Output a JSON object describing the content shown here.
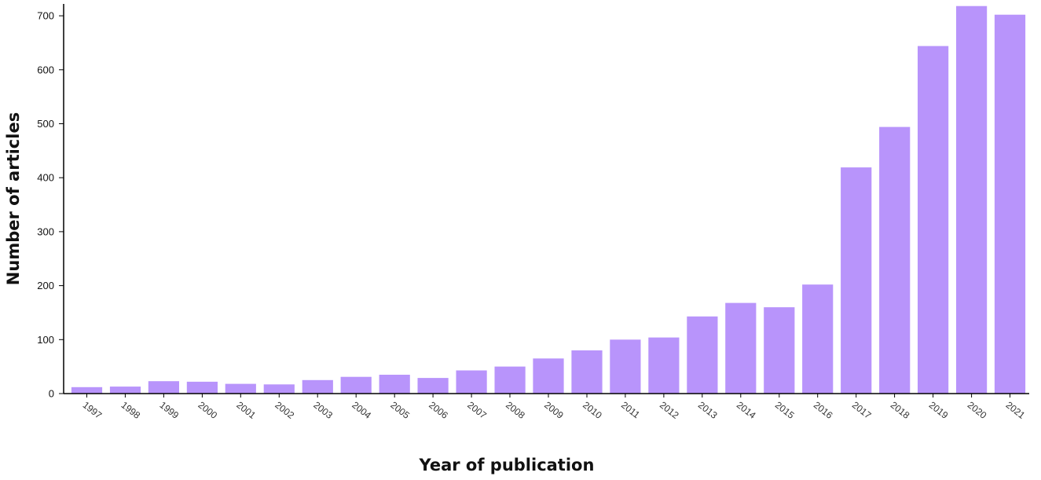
{
  "chart_data": {
    "type": "bar",
    "categories": [
      "1997",
      "1998",
      "1999",
      "2000",
      "2001",
      "2002",
      "2003",
      "2004",
      "2005",
      "2006",
      "2007",
      "2008",
      "2009",
      "2010",
      "2011",
      "2012",
      "2013",
      "2014",
      "2015",
      "2016",
      "2017",
      "2018",
      "2019",
      "2020",
      "2021"
    ],
    "values": [
      12,
      13,
      23,
      22,
      18,
      17,
      25,
      31,
      35,
      29,
      43,
      50,
      65,
      80,
      100,
      104,
      143,
      168,
      160,
      202,
      419,
      494,
      644,
      718,
      702
    ],
    "xlabel": "Year of publication",
    "ylabel": "Number of articles",
    "ylim": [
      0,
      720
    ],
    "yticks": [
      0,
      100,
      200,
      300,
      400,
      500,
      600,
      700
    ],
    "grid": false,
    "bar_color": "#b894fb"
  }
}
